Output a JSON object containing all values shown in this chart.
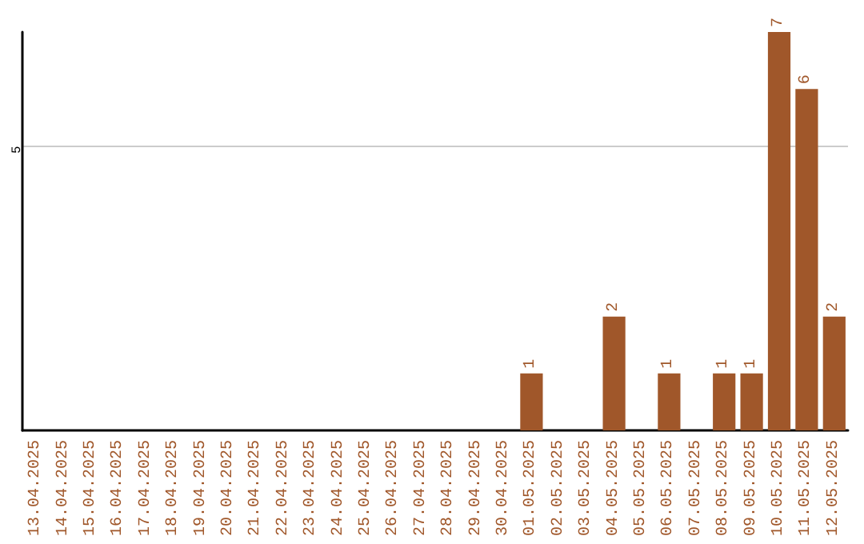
{
  "chart_data": {
    "type": "bar",
    "categories": [
      "13.04.2025",
      "14.04.2025",
      "15.04.2025",
      "16.04.2025",
      "17.04.2025",
      "18.04.2025",
      "19.04.2025",
      "20.04.2025",
      "21.04.2025",
      "22.04.2025",
      "23.04.2025",
      "24.04.2025",
      "25.04.2025",
      "26.04.2025",
      "27.04.2025",
      "28.04.2025",
      "29.04.2025",
      "30.04.2025",
      "01.05.2025",
      "02.05.2025",
      "03.05.2025",
      "04.05.2025",
      "05.05.2025",
      "06.05.2025",
      "07.05.2025",
      "08.05.2025",
      "09.05.2025",
      "10.05.2025",
      "11.05.2025",
      "12.05.2025"
    ],
    "values": [
      null,
      null,
      null,
      null,
      null,
      null,
      null,
      null,
      null,
      null,
      null,
      null,
      null,
      null,
      null,
      null,
      null,
      null,
      1,
      null,
      null,
      2,
      null,
      1,
      null,
      1,
      1,
      7,
      6,
      2
    ],
    "data_labels": true,
    "color": "#a0572a",
    "ylim": [
      0,
      7
    ],
    "ref_lines": [
      {
        "axis": "y",
        "value": 5,
        "label": "5",
        "color": "#cccccc"
      }
    ]
  }
}
